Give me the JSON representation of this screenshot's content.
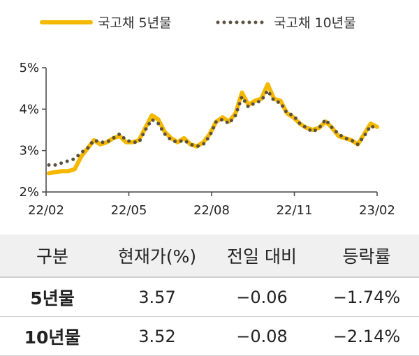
{
  "chart_data": {
    "type": "line",
    "x_ticks": [
      "22/02",
      "22/05",
      "22/08",
      "22/11",
      "23/02"
    ],
    "y_ticks": [
      "2%",
      "3%",
      "4%",
      "5%"
    ],
    "ylim": [
      2,
      5
    ],
    "xlim": [
      "2022-02",
      "2023-02"
    ],
    "grid": false,
    "legend_position": "top",
    "series": [
      {
        "name": "국고채 5년물",
        "color": "#F5B800",
        "style": "solid",
        "values": [
          2.45,
          2.48,
          2.5,
          2.5,
          2.55,
          2.85,
          3.05,
          3.25,
          3.15,
          3.2,
          3.3,
          3.35,
          3.2,
          3.2,
          3.25,
          3.55,
          3.85,
          3.75,
          3.45,
          3.3,
          3.2,
          3.3,
          3.15,
          3.1,
          3.2,
          3.4,
          3.7,
          3.8,
          3.7,
          3.9,
          4.4,
          4.1,
          4.2,
          4.25,
          4.6,
          4.25,
          4.2,
          3.9,
          3.8,
          3.65,
          3.55,
          3.5,
          3.55,
          3.7,
          3.55,
          3.35,
          3.3,
          3.25,
          3.15,
          3.4,
          3.65,
          3.57
        ]
      },
      {
        "name": "국고채 10년물",
        "color": "#5A5040",
        "style": "dotted",
        "values": [
          2.65,
          2.65,
          2.7,
          2.75,
          2.8,
          2.95,
          3.05,
          3.25,
          3.2,
          3.2,
          3.3,
          3.4,
          3.25,
          3.2,
          3.2,
          3.5,
          3.75,
          3.65,
          3.4,
          3.25,
          3.2,
          3.25,
          3.15,
          3.1,
          3.15,
          3.35,
          3.7,
          3.75,
          3.65,
          3.85,
          4.3,
          4.05,
          4.15,
          4.2,
          4.45,
          4.2,
          4.15,
          3.9,
          3.85,
          3.65,
          3.55,
          3.45,
          3.55,
          3.75,
          3.55,
          3.4,
          3.3,
          3.25,
          3.15,
          3.35,
          3.6,
          3.52
        ]
      }
    ]
  },
  "table": {
    "headers": [
      "구분",
      "현재가(%)",
      "전일 대비",
      "등락률"
    ],
    "rows": [
      [
        "5년물",
        "3.57",
        "−0.06",
        "−1.74%"
      ],
      [
        "10년물",
        "3.52",
        "−0.08",
        "−2.14%"
      ]
    ]
  }
}
